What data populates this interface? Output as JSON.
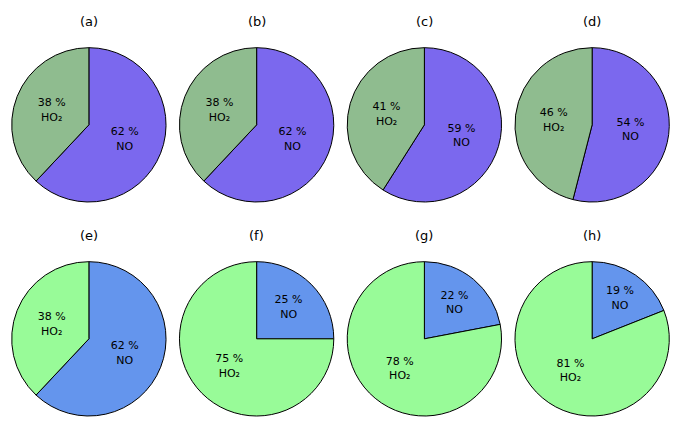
{
  "chart_data": [
    {
      "type": "pie",
      "title": "(a)",
      "categories": [
        "NO",
        "HO₂"
      ],
      "values": [
        62,
        38
      ],
      "value_labels": [
        "62 %",
        "38 %"
      ],
      "colors": [
        "#7b68ee",
        "#8fbc8f"
      ],
      "data_labels": true
    },
    {
      "type": "pie",
      "title": "(b)",
      "categories": [
        "NO",
        "HO₂"
      ],
      "values": [
        62,
        38
      ],
      "value_labels": [
        "62 %",
        "38 %"
      ],
      "colors": [
        "#7b68ee",
        "#8fbc8f"
      ],
      "data_labels": true
    },
    {
      "type": "pie",
      "title": "(c)",
      "categories": [
        "NO",
        "HO₂"
      ],
      "values": [
        59,
        41
      ],
      "value_labels": [
        "59 %",
        "41 %"
      ],
      "colors": [
        "#7b68ee",
        "#8fbc8f"
      ],
      "data_labels": true
    },
    {
      "type": "pie",
      "title": "(d)",
      "categories": [
        "NO",
        "HO₂"
      ],
      "values": [
        54,
        46
      ],
      "value_labels": [
        "54 %",
        "46 %"
      ],
      "colors": [
        "#7b68ee",
        "#8fbc8f"
      ],
      "data_labels": true
    },
    {
      "type": "pie",
      "title": "(e)",
      "categories": [
        "NO",
        "HO₂"
      ],
      "values": [
        62,
        38
      ],
      "value_labels": [
        "62 %",
        "38 %"
      ],
      "colors": [
        "#6495ed",
        "#98fb98"
      ],
      "data_labels": true
    },
    {
      "type": "pie",
      "title": "(f)",
      "categories": [
        "NO",
        "HO₂"
      ],
      "values": [
        25,
        75
      ],
      "value_labels": [
        "25 %",
        "75 %"
      ],
      "colors": [
        "#6495ed",
        "#98fb98"
      ],
      "data_labels": true
    },
    {
      "type": "pie",
      "title": "(g)",
      "categories": [
        "NO",
        "HO₂"
      ],
      "values": [
        22,
        78
      ],
      "value_labels": [
        "22 %",
        "78 %"
      ],
      "colors": [
        "#6495ed",
        "#98fb98"
      ],
      "data_labels": true
    },
    {
      "type": "pie",
      "title": "(h)",
      "categories": [
        "NO",
        "HO₂"
      ],
      "values": [
        19,
        81
      ],
      "value_labels": [
        "19 %",
        "81 %"
      ],
      "colors": [
        "#6495ed",
        "#98fb98"
      ],
      "data_labels": true
    }
  ]
}
